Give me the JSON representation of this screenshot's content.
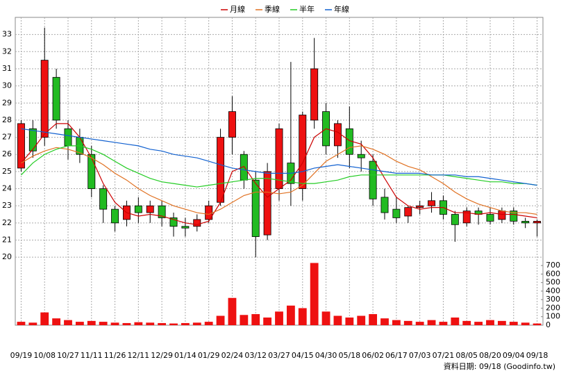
{
  "chart_data": {
    "type": "candlestick",
    "categories": [
      "09/19",
      null,
      "10/08",
      null,
      "10/27",
      null,
      "11/11",
      null,
      "11/26",
      null,
      "12/11",
      null,
      "12/29",
      null,
      "01/14",
      null,
      "01/29",
      null,
      "02/24",
      null,
      "03/12",
      null,
      "03/27",
      null,
      "04/15",
      null,
      "04/30",
      null,
      "05/18",
      null,
      "06/02",
      null,
      "06/17",
      null,
      "07/03",
      null,
      "07/21",
      null,
      "08/05",
      null,
      "08/20",
      null,
      "09/04",
      null,
      "09/18"
    ],
    "open": [
      25.2,
      27.5,
      27,
      30.5,
      27.5,
      27,
      26,
      24,
      22.8,
      22.2,
      23,
      22.6,
      23,
      22.3,
      21.8,
      21.8,
      22.2,
      23.2,
      27,
      26,
      24.5,
      21.3,
      24,
      25.5,
      24,
      28,
      28.5,
      26.5,
      27.5,
      26,
      25.6,
      23.5,
      22.8,
      22.4,
      22.9,
      23,
      23.3,
      22.5,
      22,
      22.7,
      22.5,
      22.2,
      22.7,
      22.1,
      22
    ],
    "high": [
      28,
      28,
      33.4,
      31,
      28,
      27.5,
      26.5,
      24.2,
      23,
      23.3,
      23.5,
      23.3,
      23.3,
      22.6,
      22.3,
      22.5,
      23.3,
      27.5,
      29.4,
      26.2,
      25,
      25.5,
      27.8,
      31.4,
      28.5,
      32.8,
      29,
      28,
      28.8,
      26.8,
      26,
      24,
      23.5,
      23,
      23.3,
      23.8,
      23.6,
      22.7,
      22.9,
      22.9,
      22.9,
      22.9,
      22.9,
      22.3,
      22.2
    ],
    "low": [
      25,
      25.8,
      26.5,
      27.5,
      25.7,
      25.5,
      23.5,
      22,
      21.5,
      21.8,
      22,
      22,
      21.8,
      21.2,
      21.2,
      21.5,
      22,
      23,
      26,
      24,
      20,
      21,
      23.3,
      23,
      23.3,
      27.5,
      26,
      25.8,
      25.2,
      25,
      23,
      22.2,
      22,
      22,
      22.5,
      22.6,
      22.2,
      20.9,
      21.8,
      21.9,
      21.9,
      22,
      21.9,
      21.7,
      21.2
    ],
    "close": [
      27.8,
      26.2,
      31.5,
      28,
      26.5,
      26,
      24,
      22.8,
      22,
      23,
      22.6,
      23,
      22.3,
      21.8,
      21.7,
      22.2,
      23,
      27,
      28.5,
      24.5,
      21.2,
      25,
      27.5,
      24.3,
      28.3,
      31,
      26.5,
      27.8,
      26,
      25.8,
      23.4,
      22.6,
      22.3,
      22.9,
      23,
      23.3,
      22.5,
      21.9,
      22.7,
      22.5,
      22.1,
      22.7,
      22.1,
      22,
      22.1
    ],
    "up_color": "#ee1111",
    "down_color": "#22bb22",
    "ylim": [
      19.6,
      34
    ],
    "yticks": [
      20,
      21,
      22,
      23,
      24,
      25,
      26,
      27,
      28,
      29,
      30,
      31,
      32,
      33
    ],
    "grid": true,
    "lines": [
      {
        "name": "月線",
        "color": "#cc0000",
        "values": [
          25.5,
          26.3,
          27.2,
          27.8,
          27.8,
          27,
          25.8,
          24.3,
          23.2,
          22.6,
          22.4,
          22.5,
          22.4,
          22.2,
          22,
          21.9,
          22.1,
          23.2,
          25,
          25.3,
          24.3,
          23.5,
          24,
          24.5,
          25.5,
          27,
          27.5,
          27.3,
          26.8,
          26.6,
          25.8,
          24.6,
          23.5,
          23,
          22.8,
          22.9,
          22.9,
          22.6,
          22.6,
          22.5,
          22.6,
          22.5,
          22.5,
          22.4,
          22.3
        ]
      },
      {
        "name": "季線",
        "color": "#e07020",
        "values": [
          25.5,
          25.9,
          26.2,
          26.4,
          26.3,
          26.1,
          25.8,
          25.4,
          24.9,
          24.5,
          24,
          23.6,
          23.3,
          23,
          22.8,
          22.6,
          22.5,
          22.8,
          23.2,
          23.6,
          23.8,
          23.8,
          23.7,
          23.8,
          24.2,
          24.9,
          25.6,
          26,
          26.4,
          26.5,
          26.3,
          26,
          25.6,
          25.3,
          25.1,
          24.7,
          24.3,
          23.8,
          23.4,
          23.1,
          22.9,
          22.7,
          22.6,
          22.6,
          22.5
        ]
      },
      {
        "name": "半年",
        "color": "#22cc22",
        "values": [
          24.8,
          25.5,
          26,
          26.3,
          26.5,
          26.5,
          26.3,
          26,
          25.6,
          25.2,
          24.9,
          24.6,
          24.4,
          24.3,
          24.2,
          24.1,
          24.2,
          24.3,
          24.4,
          24.5,
          24.6,
          24.6,
          24.5,
          24.4,
          24.3,
          24.3,
          24.4,
          24.5,
          24.7,
          24.8,
          24.8,
          24.8,
          24.8,
          24.8,
          24.8,
          24.8,
          24.8,
          24.7,
          24.6,
          24.5,
          24.4,
          24.4,
          24.3,
          24.3,
          24.2
        ]
      },
      {
        "name": "年線",
        "color": "#1060d0",
        "values": [
          27.5,
          27.4,
          27.3,
          27.2,
          27.1,
          27,
          26.9,
          26.8,
          26.7,
          26.6,
          26.5,
          26.3,
          26.2,
          26,
          25.9,
          25.8,
          25.6,
          25.4,
          25.2,
          25.1,
          25,
          24.9,
          24.9,
          24.9,
          25,
          25.2,
          25.3,
          25.4,
          25.3,
          25.2,
          25.1,
          25,
          24.9,
          24.9,
          24.9,
          24.8,
          24.8,
          24.8,
          24.7,
          24.7,
          24.6,
          24.5,
          24.4,
          24.3,
          24.2
        ]
      }
    ],
    "volume": {
      "color": "#ee1111",
      "values": [
        40,
        30,
        150,
        80,
        60,
        40,
        50,
        40,
        30,
        25,
        35,
        30,
        25,
        20,
        25,
        30,
        40,
        110,
        320,
        120,
        130,
        90,
        160,
        230,
        200,
        730,
        160,
        110,
        90,
        110,
        130,
        80,
        60,
        50,
        40,
        60,
        40,
        90,
        50,
        40,
        60,
        50,
        40,
        30,
        20
      ],
      "y2lim": [
        0,
        750
      ],
      "y2ticks": [
        0,
        100,
        200,
        300,
        400,
        500,
        600,
        700
      ]
    },
    "source": "資料日期: 09/18 (Goodinfo.tw)"
  }
}
